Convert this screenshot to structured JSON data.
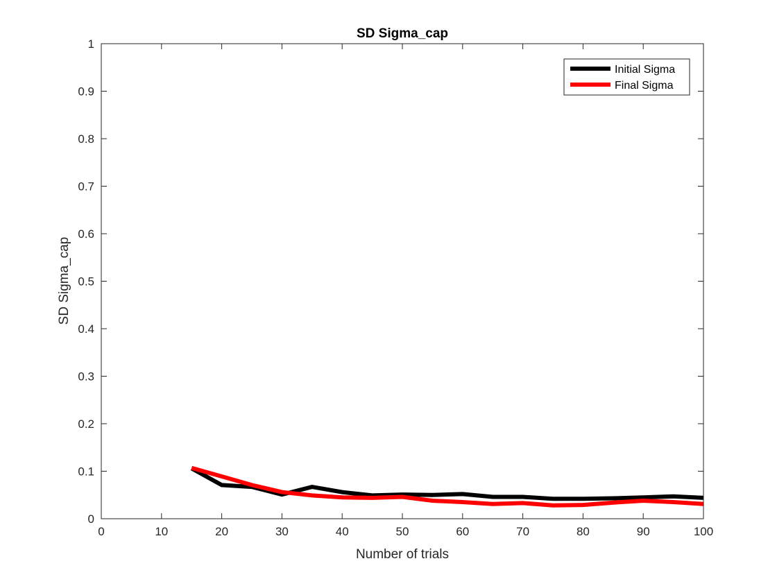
{
  "colors": {
    "axis": "#262626",
    "background": "#ffffff",
    "initial_series": "#000000",
    "final_series": "#ff0000"
  },
  "chart_data": {
    "type": "line",
    "title": "SD Sigma_cap",
    "xlabel": "Number of trials",
    "ylabel": "SD Sigma_cap",
    "xlim": [
      0,
      100
    ],
    "ylim": [
      0,
      1
    ],
    "grid": false,
    "legend_position": "top-right",
    "xticks": [
      0,
      10,
      20,
      30,
      40,
      50,
      60,
      70,
      80,
      90,
      100
    ],
    "xtick_labels": [
      "0",
      "10",
      "20",
      "30",
      "40",
      "50",
      "60",
      "70",
      "80",
      "90",
      "100"
    ],
    "yticks": [
      0,
      0.1,
      0.2,
      0.3,
      0.4,
      0.5,
      0.6,
      0.7,
      0.8,
      0.9,
      1
    ],
    "ytick_labels": [
      "0",
      "0.1",
      "0.2",
      "0.3",
      "0.4",
      "0.5",
      "0.6",
      "0.7",
      "0.8",
      "0.9",
      "1"
    ],
    "x": [
      15,
      20,
      25,
      30,
      35,
      40,
      45,
      50,
      55,
      60,
      65,
      70,
      75,
      80,
      85,
      90,
      95,
      100
    ],
    "series": [
      {
        "name": "Initial Sigma",
        "color": "#000000",
        "values": [
          0.106,
          0.071,
          0.067,
          0.051,
          0.067,
          0.056,
          0.049,
          0.051,
          0.05,
          0.052,
          0.046,
          0.046,
          0.042,
          0.042,
          0.043,
          0.045,
          0.047,
          0.044
        ]
      },
      {
        "name": "Final Sigma",
        "color": "#ff0000",
        "values": [
          0.107,
          0.089,
          0.071,
          0.056,
          0.049,
          0.045,
          0.044,
          0.046,
          0.038,
          0.035,
          0.031,
          0.033,
          0.028,
          0.029,
          0.034,
          0.038,
          0.035,
          0.031
        ]
      }
    ]
  }
}
